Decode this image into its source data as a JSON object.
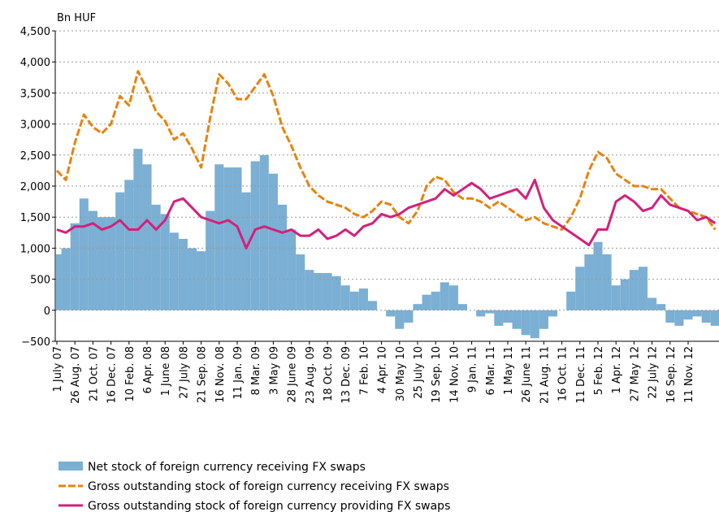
{
  "chart_data": {
    "type": "area_line",
    "y_label": "Bn HUF",
    "categories": [
      "1 July 07",
      null,
      "26 Aug. 07",
      null,
      "21 Oct. 07",
      null,
      "16 Dec. 07",
      null,
      "10 Feb. 08",
      null,
      "6 Apr. 08",
      null,
      "1 June 08",
      null,
      "27 July 08",
      null,
      "21 Sep. 08",
      null,
      "16 Nov. 08",
      null,
      "11 Jan. 09",
      null,
      "8 Mar. 09",
      null,
      "3 May 09",
      null,
      "28 June 09",
      null,
      "23 Aug. 09",
      null,
      "18 Oct. 09",
      null,
      "13 Dec. 09",
      null,
      "7 Feb. 10",
      null,
      "4 Apr. 10",
      null,
      "30 May 10",
      null,
      "25 July 10",
      null,
      "19 Sep. 10",
      null,
      "14 Nov. 10",
      null,
      "9 Jan. 11",
      null,
      "6 Mar. 11",
      null,
      "1 May 11",
      null,
      "26 June 11",
      null,
      "21 Aug. 11",
      null,
      "16 Oct. 11",
      null,
      "11 Dec. 11",
      null,
      "5 Feb. 12",
      null,
      "1 Apr. 12",
      null,
      "27 May 12",
      null,
      "22 July 12",
      null,
      "16 Sep. 12",
      null,
      "11 Nov. 12",
      null,
      null,
      null
    ],
    "series": [
      {
        "name": "Net stock of foreign currency receiving FX swaps",
        "color": "#7bafd4",
        "style": "area",
        "values": [
          900,
          1000,
          1400,
          1800,
          1600,
          1500,
          1500,
          1900,
          2100,
          2600,
          2350,
          1700,
          1550,
          1250,
          1150,
          1000,
          950,
          1600,
          2350,
          2300,
          2300,
          1900,
          2400,
          2500,
          2200,
          1700,
          1300,
          900,
          650,
          600,
          600,
          550,
          400,
          300,
          350,
          150,
          0,
          -100,
          -300,
          -200,
          100,
          250,
          300,
          450,
          400,
          100,
          0,
          -100,
          -50,
          -250,
          -200,
          -300,
          -400,
          -450,
          -300,
          -100,
          0,
          300,
          700,
          900,
          1100,
          900,
          400,
          500,
          650,
          700,
          200,
          100,
          -200,
          -250,
          -150,
          -100,
          -200,
          -250
        ]
      },
      {
        "name": "Gross outstanding stock of foreign currency receiving FX swaps",
        "color": "#e8820c",
        "style": "dashed",
        "values": [
          2250,
          2100,
          2700,
          3150,
          2950,
          2850,
          3000,
          3450,
          3300,
          3850,
          3550,
          3200,
          3050,
          2750,
          2850,
          2600,
          2300,
          3100,
          3800,
          3650,
          3400,
          3400,
          3600,
          3800,
          3450,
          2950,
          2650,
          2300,
          2000,
          1850,
          1750,
          1700,
          1650,
          1550,
          1500,
          1600,
          1750,
          1700,
          1500,
          1400,
          1600,
          2000,
          2150,
          2100,
          1900,
          1800,
          1800,
          1750,
          1650,
          1750,
          1650,
          1550,
          1450,
          1500,
          1400,
          1350,
          1300,
          1500,
          1800,
          2250,
          2550,
          2450,
          2200,
          2100,
          2000,
          2000,
          1950,
          1950,
          1800,
          1650,
          1600,
          1550,
          1500,
          1300
        ]
      },
      {
        "name": "Gross outstanding stock of foreign currency providing FX swaps",
        "color": "#d4207a",
        "style": "solid",
        "values": [
          1300,
          1250,
          1350,
          1350,
          1400,
          1300,
          1350,
          1450,
          1300,
          1300,
          1450,
          1300,
          1450,
          1750,
          1800,
          1650,
          1500,
          1450,
          1400,
          1450,
          1350,
          1000,
          1300,
          1350,
          1300,
          1250,
          1300,
          1200,
          1200,
          1300,
          1150,
          1200,
          1300,
          1200,
          1350,
          1400,
          1550,
          1500,
          1550,
          1650,
          1700,
          1750,
          1800,
          1950,
          1850,
          1950,
          2050,
          1950,
          1800,
          1850,
          1900,
          1950,
          1800,
          2100,
          1650,
          1450,
          1350,
          1250,
          1150,
          1050,
          1300,
          1300,
          1750,
          1850,
          1750,
          1600,
          1650,
          1850,
          1700,
          1650,
          1600,
          1450,
          1500,
          1400
        ]
      }
    ],
    "ylim": [
      -500,
      4500
    ],
    "yticks": [
      {
        "value": -500,
        "label": "−500"
      },
      0,
      500,
      {
        "value": 1000,
        "label": "1,000"
      },
      {
        "value": 1500,
        "label": "1,500"
      },
      {
        "value": 2000,
        "label": "2,000"
      },
      {
        "value": 2500,
        "label": "2,500"
      },
      {
        "value": 3000,
        "label": "3,000"
      },
      {
        "value": 3500,
        "label": "3,500"
      },
      {
        "value": 4000,
        "label": "4,000"
      },
      {
        "value": 4500,
        "label": "4,500"
      }
    ],
    "grid": true
  }
}
